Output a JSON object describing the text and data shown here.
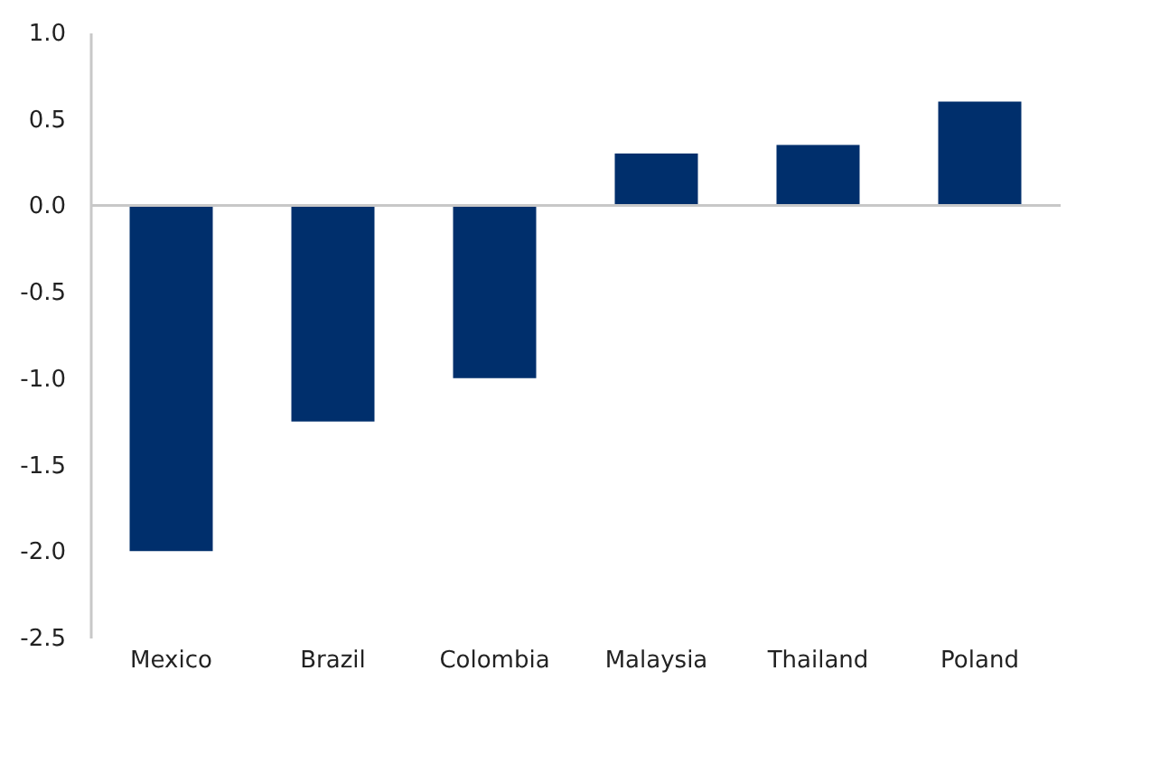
{
  "chart_data": {
    "type": "bar",
    "categories": [
      "Mexico",
      "Brazil",
      "Colombia",
      "Malaysia",
      "Thailand",
      "Poland"
    ],
    "values": [
      -2.0,
      -1.25,
      -1.0,
      0.3,
      0.35,
      0.6
    ],
    "color": "#002f6c",
    "ylim": [
      -2.5,
      1.0
    ],
    "yticks": [
      {
        "value": -2.5,
        "label": "-2.5"
      },
      {
        "value": -2.0,
        "label": "-2.0"
      },
      {
        "value": -1.5,
        "label": "-1.5"
      },
      {
        "value": -1.0,
        "label": "-1.0"
      },
      {
        "value": -0.5,
        "label": "-0.5"
      },
      {
        "value": 0.0,
        "label": "0.0"
      },
      {
        "value": 0.5,
        "label": "0.5"
      },
      {
        "value": 1.0,
        "label": "1.0"
      }
    ],
    "ref_lines": [
      {
        "axis": "y",
        "value": 0,
        "color": "#c8c8c8"
      }
    ],
    "grid": false
  }
}
